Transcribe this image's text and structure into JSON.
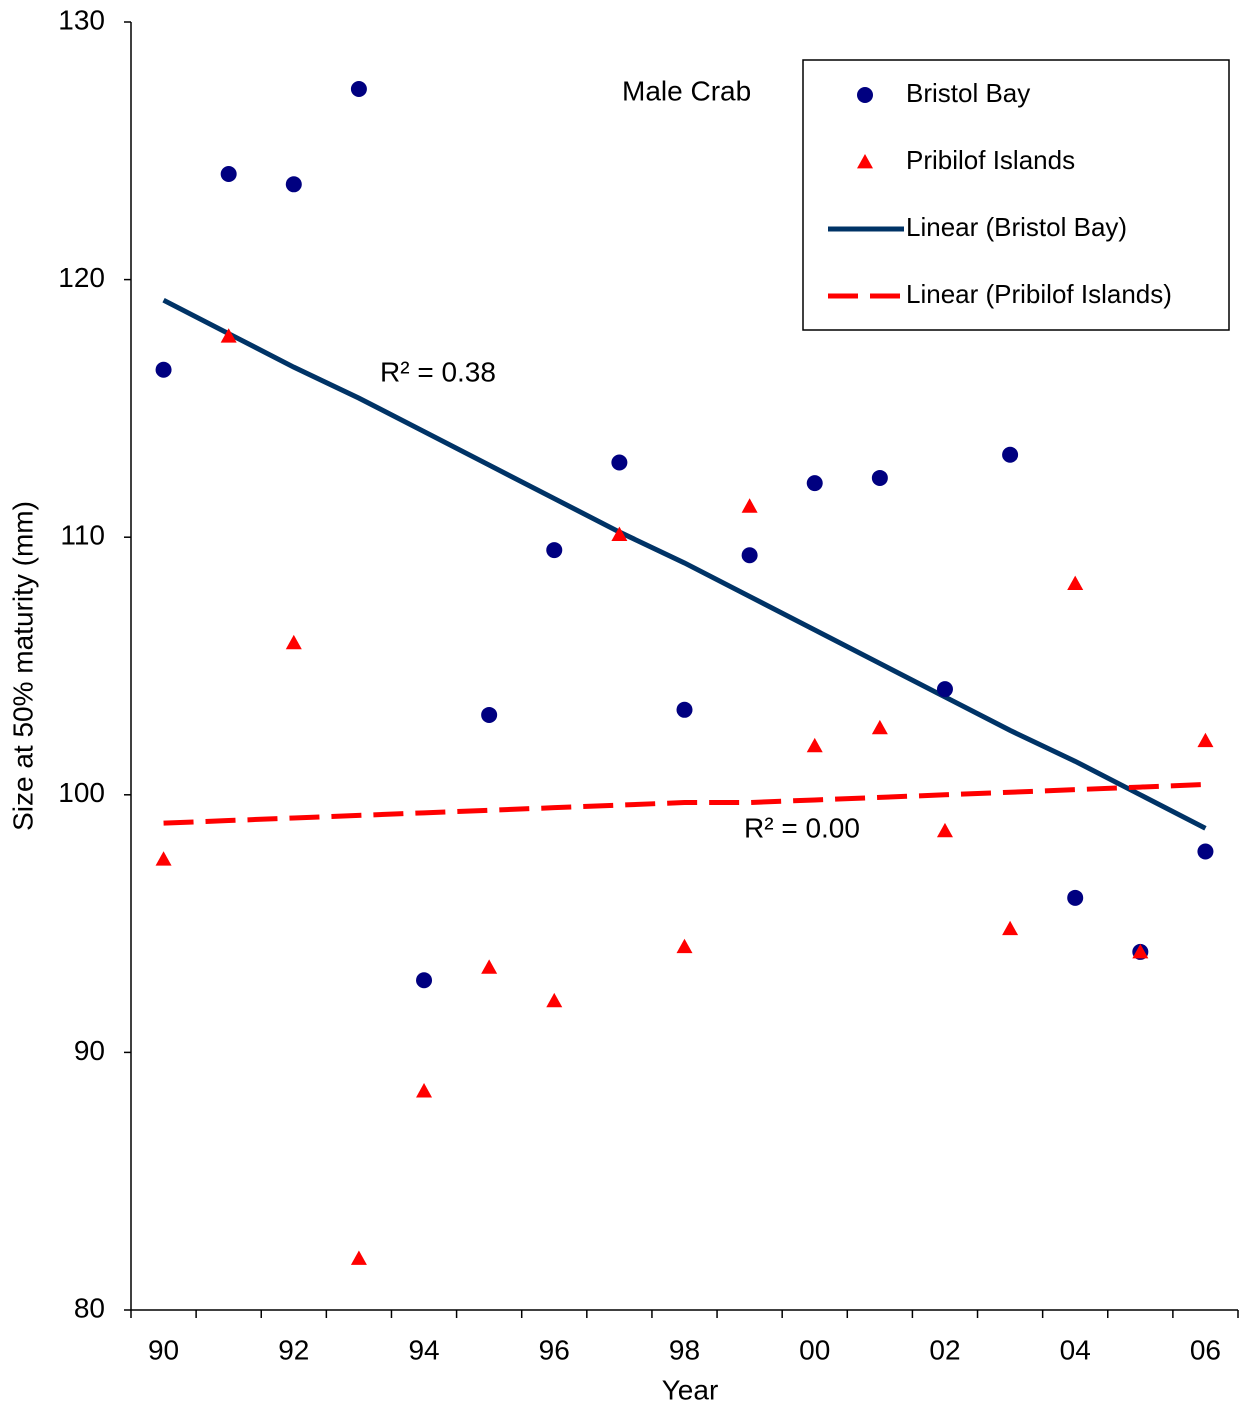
{
  "chart_data": {
    "type": "scatter",
    "y_label": "Size at 50% maturity (mm)",
    "x_label": "Year",
    "categories": [
      "90",
      null,
      "92",
      null,
      "94",
      null,
      "96",
      null,
      "98",
      null,
      "00",
      null,
      "02",
      null,
      "04",
      null,
      "06"
    ],
    "ylim": [
      80,
      130
    ],
    "yticks": [
      80,
      90,
      100,
      110,
      120,
      130
    ],
    "annotations": [
      "Male Crab",
      "R² = 0.38",
      "R² = 0.00"
    ],
    "series": [
      {
        "name": "Bristol Bay",
        "color": "#000080",
        "marker": "circle",
        "values": [
          116.5,
          124.1,
          123.7,
          127.4,
          92.8,
          103.1,
          109.5,
          112.9,
          103.3,
          109.3,
          112.1,
          112.3,
          104.1,
          113.2,
          96.0,
          93.9,
          97.8
        ]
      },
      {
        "name": "Pribilof Islands",
        "color": "#ff0000",
        "marker": "triangle",
        "values": [
          97.5,
          117.8,
          105.9,
          82.0,
          88.5,
          93.3,
          92.0,
          110.1,
          94.1,
          111.2,
          101.9,
          102.6,
          98.6,
          94.8,
          108.2,
          93.9,
          102.1
        ]
      },
      {
        "name": "Linear (Bristol Bay)",
        "color": "#003366",
        "marker": "line",
        "dashed": false,
        "values": [
          119.2,
          117.9,
          116.6,
          115.4,
          114.1,
          112.8,
          111.5,
          110.2,
          109.0,
          107.7,
          106.4,
          105.1,
          103.8,
          102.5,
          101.3,
          100.0,
          98.7
        ]
      },
      {
        "name": "Linear (Pribilof Islands)",
        "color": "#ff0000",
        "marker": "line",
        "dashed": true,
        "values": [
          98.9,
          99.0,
          99.1,
          99.2,
          99.3,
          99.4,
          99.5,
          99.6,
          99.7,
          99.7,
          99.8,
          99.9,
          100.0,
          100.1,
          100.2,
          100.3,
          100.4
        ]
      }
    ]
  }
}
